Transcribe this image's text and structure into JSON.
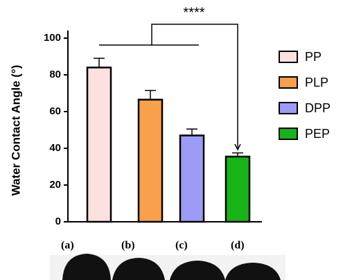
{
  "chart_data": {
    "type": "bar",
    "ylabel": "Water Contact Angle (°)",
    "categories": [
      "PP",
      "PLP",
      "DPP",
      "PEP"
    ],
    "values": [
      84,
      66.5,
      47,
      35.5
    ],
    "errors": [
      5,
      5,
      3.5,
      2
    ],
    "colors": [
      "#fde0e0",
      "#f9a04b",
      "#9c9cf6",
      "#17b317"
    ],
    "ylim": [
      0,
      100
    ],
    "yticks": [
      0,
      20,
      40,
      60,
      80,
      100
    ],
    "significance": "****",
    "image_labels": [
      "(a)",
      "(b)",
      "(c)",
      "(d)"
    ]
  }
}
